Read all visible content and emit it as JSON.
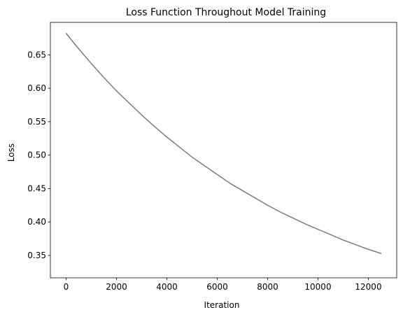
{
  "chart_data": {
    "type": "line",
    "title": "Loss Function Throughout Model Training",
    "xlabel": "Iteration",
    "ylabel": "Loss",
    "xlim": [
      -625,
      13125
    ],
    "ylim": [
      0.3165,
      0.6985
    ],
    "xticks": [
      0,
      2000,
      4000,
      6000,
      8000,
      10000,
      12000
    ],
    "xtick_labels": [
      "0",
      "2000",
      "4000",
      "6000",
      "8000",
      "10000",
      "12000"
    ],
    "yticks": [
      0.35,
      0.4,
      0.45,
      0.5,
      0.55,
      0.6,
      0.65
    ],
    "ytick_labels": [
      "0.35",
      "0.40",
      "0.45",
      "0.50",
      "0.55",
      "0.60",
      "0.65"
    ],
    "grid": false,
    "series": [
      {
        "color": "#708090",
        "x": [
          0,
          500,
          1000,
          1500,
          2000,
          2500,
          3000,
          3500,
          4000,
          4500,
          5000,
          5500,
          6000,
          6500,
          7000,
          7500,
          8000,
          8500,
          9000,
          9500,
          10000,
          10500,
          11000,
          11500,
          12000,
          12500
        ],
        "y": [
          0.682,
          0.659,
          0.637,
          0.616,
          0.596,
          0.578,
          0.56,
          0.543,
          0.527,
          0.512,
          0.497,
          0.484,
          0.471,
          0.458,
          0.447,
          0.436,
          0.425,
          0.415,
          0.406,
          0.397,
          0.389,
          0.381,
          0.373,
          0.366,
          0.359,
          0.353
        ]
      }
    ]
  }
}
